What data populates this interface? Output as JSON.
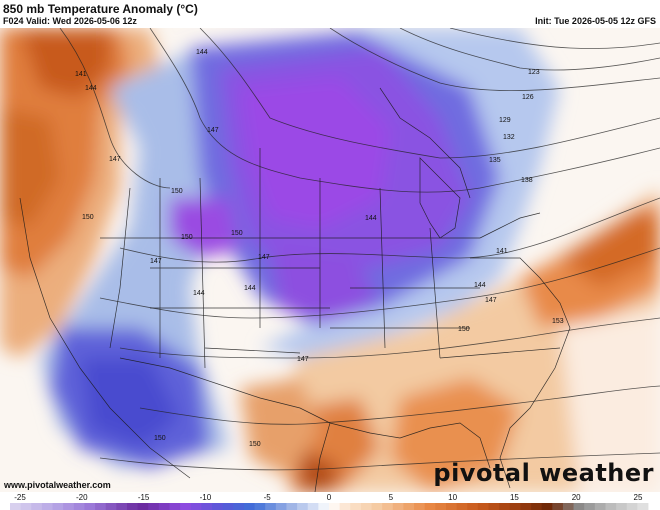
{
  "header": {
    "title": "850 mb Temperature Anomaly (°C)",
    "valid": "F024 Valid: Wed 2026-05-06 12z",
    "init": "Init: Tue 2026-05-05 12z GFS"
  },
  "footer": {
    "website": "www.pivotalweather.com",
    "brand": "pivotal weather"
  },
  "colorbar": {
    "ticks": [
      "-25",
      "-20",
      "-15",
      "-10",
      "-5",
      "0",
      "5",
      "10",
      "15",
      "20",
      "25"
    ],
    "colors": {
      "cold_extreme": "#6a2a9e",
      "cold_strong": "#8e4be0",
      "cold_mid": "#5858d8",
      "cold_light": "#9fb4e6",
      "neutral": "#ffffff",
      "warm_light": "#f5c9a0",
      "warm_mid": "#e88845",
      "warm_strong": "#c75a1c"
    }
  },
  "contours": {
    "labels": [
      "141",
      "144",
      "147",
      "150",
      "123",
      "126",
      "129",
      "132",
      "135",
      "138",
      "141",
      "144",
      "147",
      "144",
      "150",
      "153",
      "150",
      "147",
      "144",
      "147",
      "150",
      "150",
      "147",
      "144",
      "150",
      "144",
      "147",
      "150"
    ]
  }
}
